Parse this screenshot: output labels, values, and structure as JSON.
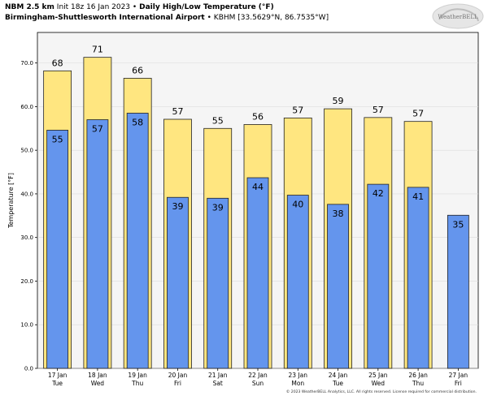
{
  "header": {
    "line1_bold1": "NBM 2.5 km",
    "line1_normal": "Init 18z 16 Jan 2023",
    "line1_sep": "•",
    "line1_bold2": "Daily High/Low Temperature (°F)",
    "line2_bold": "Birmingham-Shuttlesworth International Airport",
    "line2_sep": "•",
    "line2_normal": "KBHM [33.5629°N, 86.7535°W]"
  },
  "logo": {
    "text": "WeatherBELL"
  },
  "footer": "© 2023 WeatherBELL Analytics, LLC. All rights reserved. License required for commercial distribution.",
  "colors": {
    "high": "#ffe680",
    "low": "#6495ed",
    "panel": "#f5f5f5",
    "edge": "#222222"
  },
  "chart_data": {
    "type": "bar",
    "ylabel": "Temperature [°F]",
    "ylim": [
      0,
      77
    ],
    "yticks": [
      "0.0",
      "10.0",
      "20.0",
      "30.0",
      "40.0",
      "50.0",
      "60.0",
      "70.0"
    ],
    "categories": [
      [
        "17 Jan",
        "Tue"
      ],
      [
        "18 Jan",
        "Wed"
      ],
      [
        "19 Jan",
        "Thu"
      ],
      [
        "20 Jan",
        "Fri"
      ],
      [
        "21 Jan",
        "Sat"
      ],
      [
        "22 Jan",
        "Sun"
      ],
      [
        "23 Jan",
        "Mon"
      ],
      [
        "24 Jan",
        "Tue"
      ],
      [
        "25 Jan",
        "Wed"
      ],
      [
        "26 Jan",
        "Thu"
      ],
      [
        "27 Jan",
        "Fri"
      ]
    ],
    "series": [
      {
        "values": [
          68.2,
          71.3,
          66.5,
          57.1,
          55.0,
          55.9,
          57.4,
          59.5,
          57.5,
          56.6,
          null
        ],
        "labels": [
          "68",
          "71",
          "66",
          "57",
          "55",
          "56",
          "57",
          "59",
          "57",
          "57",
          ""
        ]
      },
      {
        "values": [
          54.6,
          57.0,
          58.5,
          39.2,
          39.0,
          43.7,
          39.7,
          37.6,
          42.2,
          41.5,
          35.1
        ],
        "labels": [
          "55",
          "57",
          "58",
          "39",
          "39",
          "44",
          "40",
          "38",
          "42",
          "41",
          "35"
        ]
      }
    ]
  }
}
